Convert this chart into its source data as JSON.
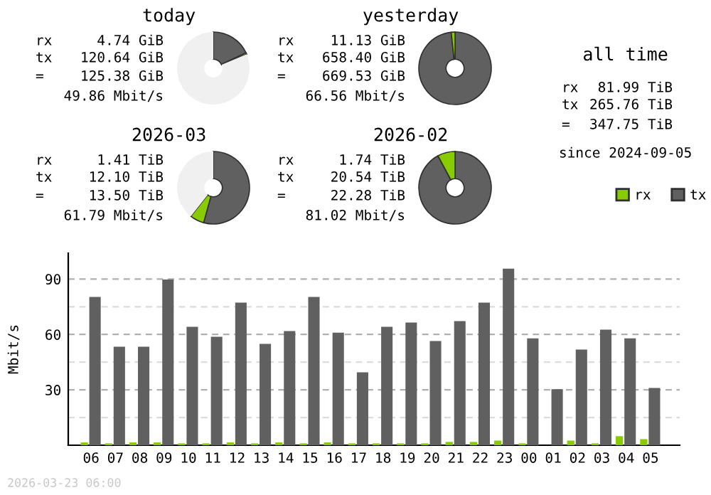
{
  "chart_data": [
    {
      "type": "donut",
      "title": "today",
      "categories": [
        null,
        null,
        null
      ],
      "values": [
        18.0,
        0.7,
        81.3
      ],
      "colors": [
        "#606060",
        "#88cc00",
        "#f0f0f0"
      ],
      "annotations": [
        "rx 4.74 GiB",
        "tx 120.64 GiB",
        "= 125.38 GiB",
        "49.86 Mbit/s"
      ]
    },
    {
      "type": "donut",
      "title": "yesterday",
      "categories": [
        null,
        null,
        null
      ],
      "values": [
        98.3,
        1.7,
        0
      ],
      "colors": [
        "#606060",
        "#88cc00",
        "#f0f0f0"
      ],
      "annotations": [
        "rx 11.13 GiB",
        "tx 658.40 GiB",
        "= 669.53 GiB",
        "66.56 Mbit/s"
      ]
    },
    {
      "type": "donut",
      "title": "2026-03",
      "categories": [
        null,
        null,
        null
      ],
      "values": [
        54.3,
        6.3,
        39.4
      ],
      "colors": [
        "#606060",
        "#88cc00",
        "#f0f0f0"
      ],
      "annotations": [
        "rx 1.41 TiB",
        "tx 12.10 TiB",
        "= 13.50 TiB",
        "61.79 Mbit/s"
      ]
    },
    {
      "type": "donut",
      "title": "2026-02",
      "categories": [
        null,
        null,
        null
      ],
      "values": [
        92.2,
        7.8,
        0
      ],
      "colors": [
        "#606060",
        "#88cc00",
        "#f0f0f0"
      ],
      "annotations": [
        "rx 1.74 TiB",
        "tx 20.54 TiB",
        "= 22.28 TiB",
        "81.02 Mbit/s"
      ]
    },
    {
      "type": "other",
      "title": "all time",
      "annotations": [
        "rx 81.99 TiB",
        "tx 265.76 TiB",
        "= 347.75 TiB",
        "since 2024-09-05"
      ]
    },
    {
      "type": "bar",
      "ylabel": "Mbit/s",
      "categories": [
        "06",
        "07",
        "08",
        "09",
        "10",
        "11",
        "12",
        "13",
        "14",
        "15",
        "16",
        "17",
        "18",
        "19",
        "20",
        "21",
        "22",
        "23",
        "00",
        "01",
        "02",
        "03",
        "04",
        "05"
      ],
      "series": [
        {
          "name": "rx",
          "color": "#88cc00",
          "values": [
            1.5,
            1,
            1.5,
            1.5,
            1,
            1,
            1.5,
            1,
            1.5,
            1,
            1.5,
            1,
            1,
            1,
            1,
            1.8,
            1.8,
            2.5,
            1,
            0,
            2.5,
            1,
            4.9,
            3.3
          ]
        },
        {
          "name": "tx",
          "color": "#606060",
          "values": [
            80.3,
            53.3,
            53.3,
            89.7,
            64.1,
            58.7,
            77.2,
            54.9,
            61.8,
            80.3,
            61,
            39.5,
            64.1,
            66.4,
            56.4,
            67.2,
            77.2,
            95.6,
            57.9,
            30.3,
            51.8,
            62.6,
            57.9,
            31.0
          ]
        }
      ],
      "ylim": [
        0,
        104
      ],
      "yticks": [
        {
          "value": 15,
          "label": null
        },
        30,
        {
          "value": 45,
          "label": null
        },
        60,
        {
          "value": 75,
          "label": null
        },
        90
      ],
      "grid": "y",
      "legend": "top right",
      "annotations": [
        "2026-03-23 06:00"
      ]
    }
  ]
}
